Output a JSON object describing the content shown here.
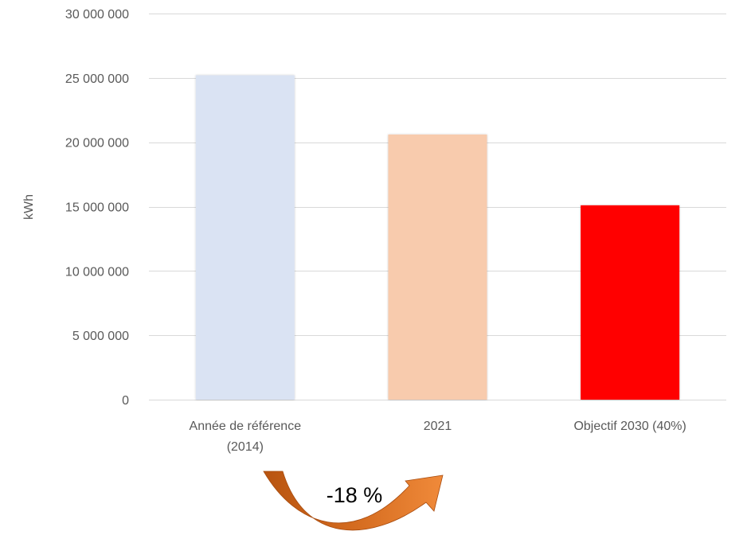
{
  "chart_data": {
    "type": "bar",
    "categories": [
      "Année de référence (2014)",
      "2021",
      "Objectif 2030 (40%)"
    ],
    "category_lines": [
      [
        "Année de référence",
        "(2014)"
      ],
      [
        "2021"
      ],
      [
        "Objectif 2030 (40%)"
      ]
    ],
    "values": [
      25200000,
      20600000,
      15100000
    ],
    "bar_colors": [
      "#dae3f3",
      "#f8cbad",
      "#ff0000"
    ],
    "ylabel": "kWh",
    "ylim": [
      0,
      30000000
    ],
    "yticks": [
      0,
      5000000,
      10000000,
      15000000,
      20000000,
      25000000,
      30000000
    ],
    "ytick_labels": [
      "0",
      "5 000 000",
      "10 000 000",
      "15 000 000",
      "20 000 000",
      "25 000 000",
      "30 000 000"
    ],
    "grid": true,
    "legend": "none",
    "annotation": {
      "text": "-18 %",
      "from_category": "Année de référence (2014)",
      "to_category": "2021",
      "arrow_color": "#c55a11"
    }
  }
}
